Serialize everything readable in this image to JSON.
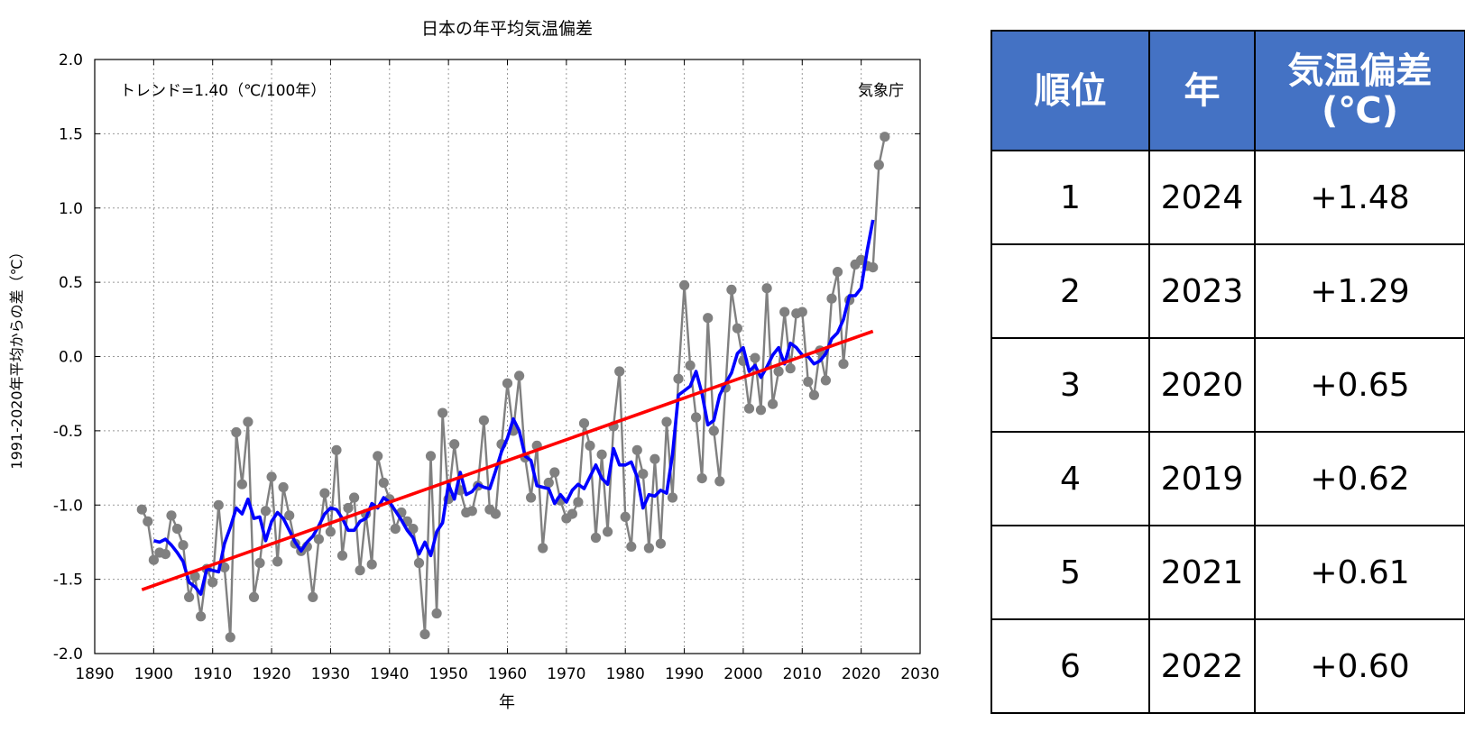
{
  "chart_data": {
    "type": "line",
    "title": "日本の年平均気温偏差",
    "xlabel": "年",
    "ylabel": "1991-2020年平均からの差（℃）",
    "annotation_trend": "トレンド=1.40（℃/100年）",
    "annotation_source": "気象庁",
    "xlim": [
      1890,
      2030
    ],
    "ylim": [
      -2.0,
      2.0
    ],
    "xticks": [
      1890,
      1900,
      1910,
      1920,
      1930,
      1940,
      1950,
      1960,
      1970,
      1980,
      1990,
      2000,
      2010,
      2020,
      2030
    ],
    "yticks": [
      -2.0,
      -1.5,
      -1.0,
      -0.5,
      0.0,
      0.5,
      1.0,
      1.5,
      2.0
    ],
    "grid": true,
    "series": [
      {
        "kind": "annual",
        "color": "#808080",
        "x": [
          1898,
          1899,
          1900,
          1901,
          1902,
          1903,
          1904,
          1905,
          1906,
          1907,
          1908,
          1909,
          1910,
          1911,
          1912,
          1913,
          1914,
          1915,
          1916,
          1917,
          1918,
          1919,
          1920,
          1921,
          1922,
          1923,
          1924,
          1925,
          1926,
          1927,
          1928,
          1929,
          1930,
          1931,
          1932,
          1933,
          1934,
          1935,
          1936,
          1937,
          1938,
          1939,
          1940,
          1941,
          1942,
          1943,
          1944,
          1945,
          1946,
          1947,
          1948,
          1949,
          1950,
          1951,
          1952,
          1953,
          1954,
          1955,
          1956,
          1957,
          1958,
          1959,
          1960,
          1961,
          1962,
          1963,
          1964,
          1965,
          1966,
          1967,
          1968,
          1969,
          1970,
          1971,
          1972,
          1973,
          1974,
          1975,
          1976,
          1977,
          1978,
          1979,
          1980,
          1981,
          1982,
          1983,
          1984,
          1985,
          1986,
          1987,
          1988,
          1989,
          1990,
          1991,
          1992,
          1993,
          1994,
          1995,
          1996,
          1997,
          1998,
          1999,
          2000,
          2001,
          2002,
          2003,
          2004,
          2005,
          2006,
          2007,
          2008,
          2009,
          2010,
          2011,
          2012,
          2013,
          2014,
          2015,
          2016,
          2017,
          2018,
          2019,
          2020,
          2021,
          2022,
          2023,
          2024
        ],
        "y": [
          -1.03,
          -1.11,
          -1.37,
          -1.32,
          -1.33,
          -1.07,
          -1.16,
          -1.27,
          -1.62,
          -1.48,
          -1.75,
          -1.43,
          -1.52,
          -1.0,
          -1.42,
          -1.89,
          -0.51,
          -0.86,
          -0.44,
          -1.62,
          -1.39,
          -1.04,
          -0.81,
          -1.38,
          -0.88,
          -1.07,
          -1.26,
          -1.31,
          -1.28,
          -1.62,
          -1.23,
          -0.92,
          -1.18,
          -0.63,
          -1.34,
          -1.02,
          -0.95,
          -1.44,
          -1.06,
          -1.4,
          -0.67,
          -0.85,
          -0.96,
          -1.16,
          -1.05,
          -1.11,
          -1.16,
          -1.39,
          -1.87,
          -0.67,
          -1.73,
          -0.38,
          -0.96,
          -0.59,
          -0.9,
          -1.05,
          -1.04,
          -0.87,
          -0.43,
          -1.03,
          -1.06,
          -0.59,
          -0.18,
          -0.5,
          -0.13,
          -0.68,
          -0.95,
          -0.6,
          -1.29,
          -0.85,
          -0.78,
          -0.97,
          -1.09,
          -1.06,
          -0.98,
          -0.45,
          -0.6,
          -1.22,
          -0.66,
          -1.18,
          -0.47,
          -0.1,
          -1.08,
          -1.28,
          -0.63,
          -0.79,
          -1.29,
          -0.69,
          -1.26,
          -0.44,
          -0.95,
          -0.15,
          0.48,
          -0.06,
          -0.41,
          -0.82,
          0.26,
          -0.5,
          -0.84,
          -0.21,
          0.45,
          0.19,
          -0.03,
          -0.35,
          -0.01,
          -0.36,
          0.46,
          -0.32,
          -0.1,
          0.3,
          -0.08,
          0.29,
          0.3,
          -0.17,
          -0.26,
          0.04,
          -0.16,
          0.39,
          0.57,
          -0.05,
          0.38,
          0.62,
          0.65,
          0.61,
          0.6,
          1.29,
          1.48
        ]
      },
      {
        "kind": "5-year running mean",
        "color": "#0000ff",
        "x": [
          1900,
          1901,
          1902,
          1903,
          1904,
          1905,
          1906,
          1907,
          1908,
          1909,
          1910,
          1911,
          1912,
          1913,
          1914,
          1915,
          1916,
          1917,
          1918,
          1919,
          1920,
          1921,
          1922,
          1923,
          1924,
          1925,
          1926,
          1927,
          1928,
          1929,
          1930,
          1931,
          1932,
          1933,
          1934,
          1935,
          1936,
          1937,
          1938,
          1939,
          1940,
          1941,
          1942,
          1943,
          1944,
          1945,
          1946,
          1947,
          1948,
          1949,
          1950,
          1951,
          1952,
          1953,
          1954,
          1955,
          1956,
          1957,
          1958,
          1959,
          1960,
          1961,
          1962,
          1963,
          1964,
          1965,
          1966,
          1967,
          1968,
          1969,
          1970,
          1971,
          1972,
          1973,
          1974,
          1975,
          1976,
          1977,
          1978,
          1979,
          1980,
          1981,
          1982,
          1983,
          1984,
          1985,
          1986,
          1987,
          1988,
          1989,
          1990,
          1991,
          1992,
          1993,
          1994,
          1995,
          1996,
          1997,
          1998,
          1999,
          2000,
          2001,
          2002,
          2003,
          2004,
          2005,
          2006,
          2007,
          2008,
          2009,
          2010,
          2011,
          2012,
          2013,
          2014,
          2015,
          2016,
          2017,
          2018,
          2019,
          2020,
          2021,
          2022
        ],
        "y": [
          -1.24,
          -1.25,
          -1.23,
          -1.27,
          -1.32,
          -1.38,
          -1.52,
          -1.55,
          -1.6,
          -1.43,
          -1.44,
          -1.45,
          -1.26,
          -1.15,
          -1.02,
          -1.06,
          -0.96,
          -1.09,
          -1.08,
          -1.24,
          -1.11,
          -1.05,
          -1.09,
          -1.17,
          -1.25,
          -1.31,
          -1.25,
          -1.21,
          -1.14,
          -1.06,
          -1.02,
          -1.03,
          -1.09,
          -1.17,
          -1.17,
          -1.11,
          -1.09,
          -0.99,
          -1.02,
          -0.95,
          -0.98,
          -1.04,
          -1.1,
          -1.17,
          -1.22,
          -1.33,
          -1.25,
          -1.34,
          -1.18,
          -1.12,
          -0.86,
          -0.96,
          -0.78,
          -0.93,
          -0.91,
          -0.86,
          -0.88,
          -0.89,
          -0.77,
          -0.64,
          -0.55,
          -0.42,
          -0.5,
          -0.67,
          -0.7,
          -0.87,
          -0.88,
          -0.89,
          -0.99,
          -0.93,
          -0.98,
          -0.9,
          -0.86,
          -0.89,
          -0.81,
          -0.73,
          -0.82,
          -0.86,
          -0.62,
          -0.73,
          -0.73,
          -0.71,
          -0.81,
          -1.02,
          -0.93,
          -0.94,
          -0.9,
          -0.92,
          -0.66,
          -0.26,
          -0.23,
          -0.2,
          -0.1,
          -0.25,
          -0.46,
          -0.43,
          -0.26,
          -0.18,
          -0.11,
          0.02,
          0.06,
          -0.1,
          -0.06,
          -0.14,
          -0.07,
          0.01,
          0.06,
          -0.05,
          0.09,
          0.06,
          0.01,
          0.0,
          -0.05,
          -0.03,
          0.02,
          0.12,
          0.16,
          0.25,
          0.41,
          0.41,
          0.46,
          0.71,
          0.92
        ]
      },
      {
        "kind": "trend",
        "color": "#ff0000",
        "x": [
          1898,
          2022
        ],
        "y": [
          -1.57,
          0.17
        ]
      }
    ]
  },
  "table": {
    "headers": [
      "順位",
      "年",
      "気温偏差\n(℃)"
    ],
    "rows": [
      [
        "1",
        "2024",
        "+1.48"
      ],
      [
        "2",
        "2023",
        "+1.29"
      ],
      [
        "3",
        "2020",
        "+0.65"
      ],
      [
        "4",
        "2019",
        "+0.62"
      ],
      [
        "5",
        "2021",
        "+0.61"
      ],
      [
        "6",
        "2022",
        "+0.60"
      ]
    ]
  }
}
